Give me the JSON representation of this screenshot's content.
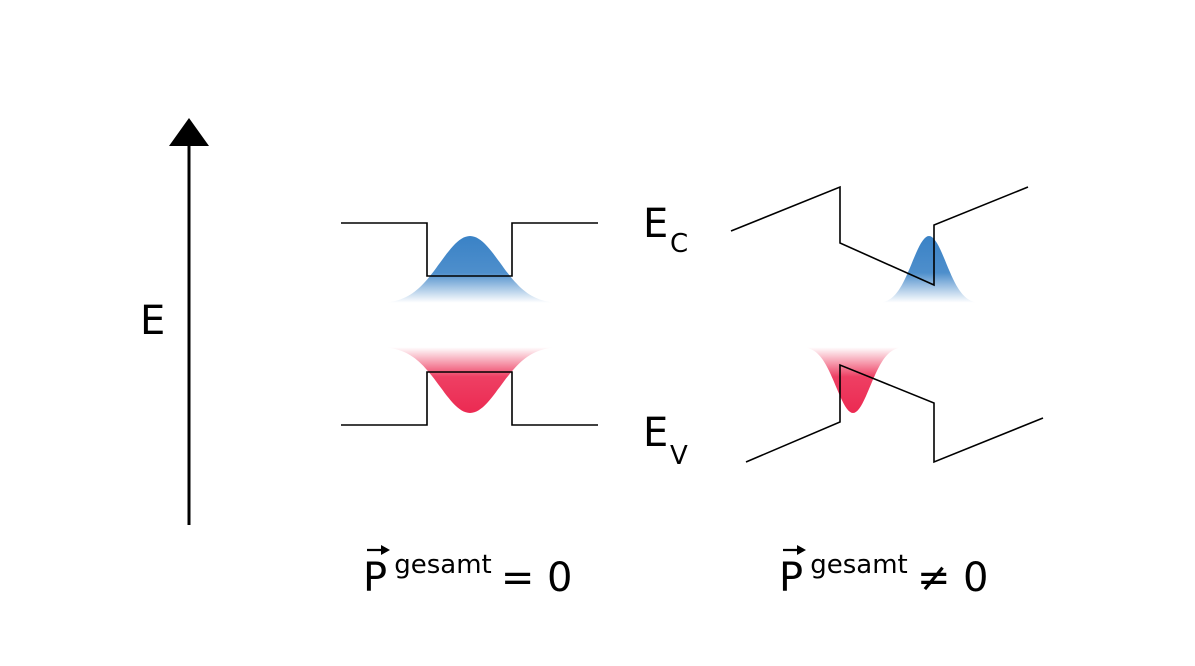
{
  "axis": {
    "energy_label": "E"
  },
  "bands": {
    "conduction": {
      "main": "E",
      "sub": "C"
    },
    "valence": {
      "main": "E",
      "sub": "V"
    }
  },
  "panels": {
    "left": {
      "symbol": "P",
      "superscript": "gesamt",
      "relation": "= 0"
    },
    "right": {
      "symbol": "P",
      "superscript": "gesamt",
      "relation": "≠ 0"
    }
  },
  "colors": {
    "electron": "#3a82c6",
    "hole": "#ec2a52",
    "line": "#000000"
  }
}
